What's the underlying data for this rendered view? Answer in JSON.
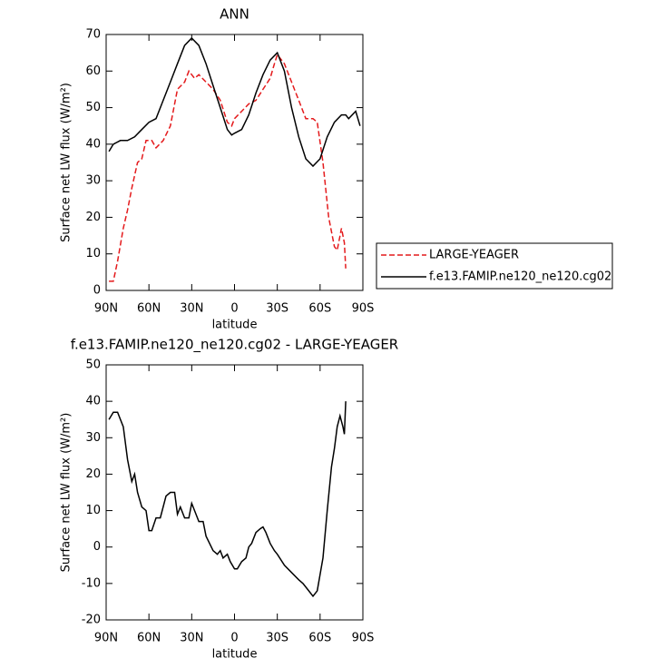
{
  "chart_data": [
    {
      "type": "line",
      "title": "ANN",
      "xlabel": "latitude",
      "ylabel": "Surface net LW flux (W/m²)",
      "xlim": [
        90,
        -90
      ],
      "ylim": [
        0,
        70
      ],
      "xticks": [
        {
          "value": 90,
          "label": "90N"
        },
        {
          "value": 60,
          "label": "60N"
        },
        {
          "value": 30,
          "label": "30N"
        },
        0,
        {
          "value": -30,
          "label": "30S"
        },
        {
          "value": -60,
          "label": "60S"
        },
        {
          "value": -90,
          "label": "90S"
        }
      ],
      "yticks": [
        0,
        10,
        20,
        30,
        40,
        50,
        60,
        70
      ],
      "series": [
        {
          "name": "LARGE-YEAGER",
          "color": "#e41a1c",
          "dashed": true,
          "x": [
            88,
            85,
            82,
            78,
            75,
            72,
            68,
            65,
            62,
            58,
            55,
            50,
            45,
            40,
            35,
            32,
            28,
            25,
            20,
            15,
            10,
            5,
            2,
            0,
            -5,
            -10,
            -15,
            -20,
            -25,
            -28,
            -30,
            -35,
            -40,
            -45,
            -50,
            -55,
            -58,
            -62,
            -66,
            -70,
            -72,
            -75,
            -77,
            -78
          ],
          "values": [
            2.5,
            2.5,
            8,
            17,
            22,
            28,
            35,
            36,
            41,
            41,
            39,
            41,
            45,
            55,
            57,
            60,
            58,
            59,
            57,
            55,
            52,
            46,
            45,
            47,
            49,
            51,
            52,
            55,
            58,
            62,
            64.5,
            62,
            57,
            52,
            47,
            47,
            46,
            35,
            20,
            12,
            11,
            17,
            13,
            6
          ]
        },
        {
          "name": "f.e13.FAMIP.ne120_ne120.cg02",
          "color": "#000000",
          "dashed": false,
          "x": [
            88,
            85,
            80,
            75,
            70,
            65,
            60,
            55,
            50,
            45,
            40,
            35,
            30,
            25,
            20,
            15,
            10,
            5,
            2,
            0,
            -5,
            -10,
            -15,
            -20,
            -25,
            -30,
            -35,
            -40,
            -45,
            -50,
            -55,
            -60,
            -65,
            -70,
            -75,
            -78,
            -80,
            -85,
            -88
          ],
          "values": [
            38,
            40,
            41,
            41,
            42,
            44,
            46,
            47,
            52,
            57,
            62,
            67,
            69,
            67,
            62,
            56,
            50,
            44,
            42.5,
            43,
            44,
            48,
            54,
            59,
            63,
            65,
            60,
            50,
            42,
            36,
            34,
            36,
            42,
            46,
            48,
            48,
            47,
            49,
            45
          ]
        }
      ]
    },
    {
      "type": "line",
      "title": "f.e13.FAMIP.ne120_ne120.cg02 - LARGE-YEAGER",
      "xlabel": "latitude",
      "ylabel": "Surface net LW flux (W/m²)",
      "xlim": [
        90,
        -90
      ],
      "ylim": [
        -20,
        50
      ],
      "xticks": [
        {
          "value": 90,
          "label": "90N"
        },
        {
          "value": 60,
          "label": "60N"
        },
        {
          "value": 30,
          "label": "30N"
        },
        0,
        {
          "value": -30,
          "label": "30S"
        },
        {
          "value": -60,
          "label": "60S"
        },
        {
          "value": -90,
          "label": "90S"
        }
      ],
      "yticks": [
        -20,
        -10,
        0,
        10,
        20,
        30,
        40,
        50
      ],
      "series": [
        {
          "color": "#000000",
          "dashed": false,
          "x": [
            88,
            85,
            82,
            78,
            75,
            72,
            70,
            68,
            65,
            62,
            60,
            58,
            55,
            52,
            48,
            45,
            42,
            40,
            38,
            35,
            32,
            30,
            25,
            22,
            20,
            15,
            12,
            10,
            8,
            5,
            3,
            0,
            -2,
            -5,
            -8,
            -10,
            -12,
            -15,
            -18,
            -20,
            -22,
            -25,
            -28,
            -30,
            -35,
            -40,
            -45,
            -48,
            -52,
            -55,
            -58,
            -62,
            -65,
            -68,
            -70,
            -72,
            -74,
            -76,
            -77,
            -78
          ],
          "values": [
            35,
            37,
            37,
            33,
            24,
            18,
            20,
            15,
            11,
            10,
            4.5,
            4.5,
            8,
            8,
            14,
            15,
            15,
            9,
            11,
            8,
            8,
            12,
            7,
            7,
            3,
            -1,
            -2,
            -1,
            -3,
            -2,
            -4,
            -6,
            -6,
            -4,
            -3,
            0,
            1,
            4,
            5,
            5.5,
            4,
            1,
            -1,
            -2,
            -5,
            -7,
            -9,
            -10,
            -12,
            -13.5,
            -12,
            -3,
            10,
            22,
            27,
            33,
            36,
            33,
            31,
            40
          ]
        }
      ]
    }
  ]
}
